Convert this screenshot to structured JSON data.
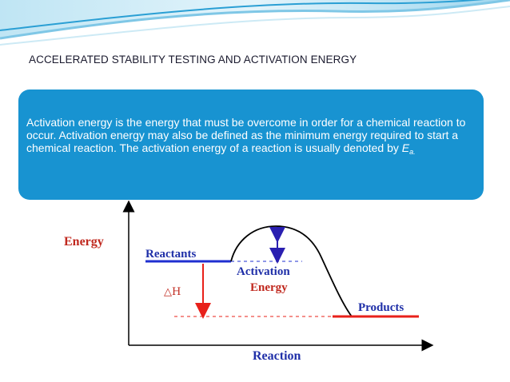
{
  "slide": {
    "title": "ACCELERATED STABILITY TESTING AND ACTIVATION ENERGY"
  },
  "info_box": {
    "text_main": "Activation energy is the energy that must be overcome in order for a chemical reaction to occur. Activation energy may also be defined as the minimum energy required to start a chemical reaction. The activation energy of a reaction is usually denoted by ",
    "symbol": "E",
    "subscript": "a.",
    "background": "#1893d1"
  },
  "diagram": {
    "y_axis_label": "Energy",
    "x_axis_label": "Reaction",
    "reactants_label": "Reactants",
    "products_label": "Products",
    "activation_label_line1": "Activation",
    "activation_label_line2": "Energy",
    "delta_h_label": "△H",
    "colors": {
      "reactants": "#1f2fd0",
      "products": "#e8201a",
      "curve": "#000000",
      "activation_arrow": "#2a1fb0",
      "delta_h_arrow": "#e8201a",
      "axis_label": "#c0281e",
      "reaction_label": "#1f2fa8"
    }
  },
  "theme": {
    "banner_light": "#cdeaf5",
    "banner_mid": "#7fc7e6",
    "banner_dark": "#2a9fd4"
  }
}
